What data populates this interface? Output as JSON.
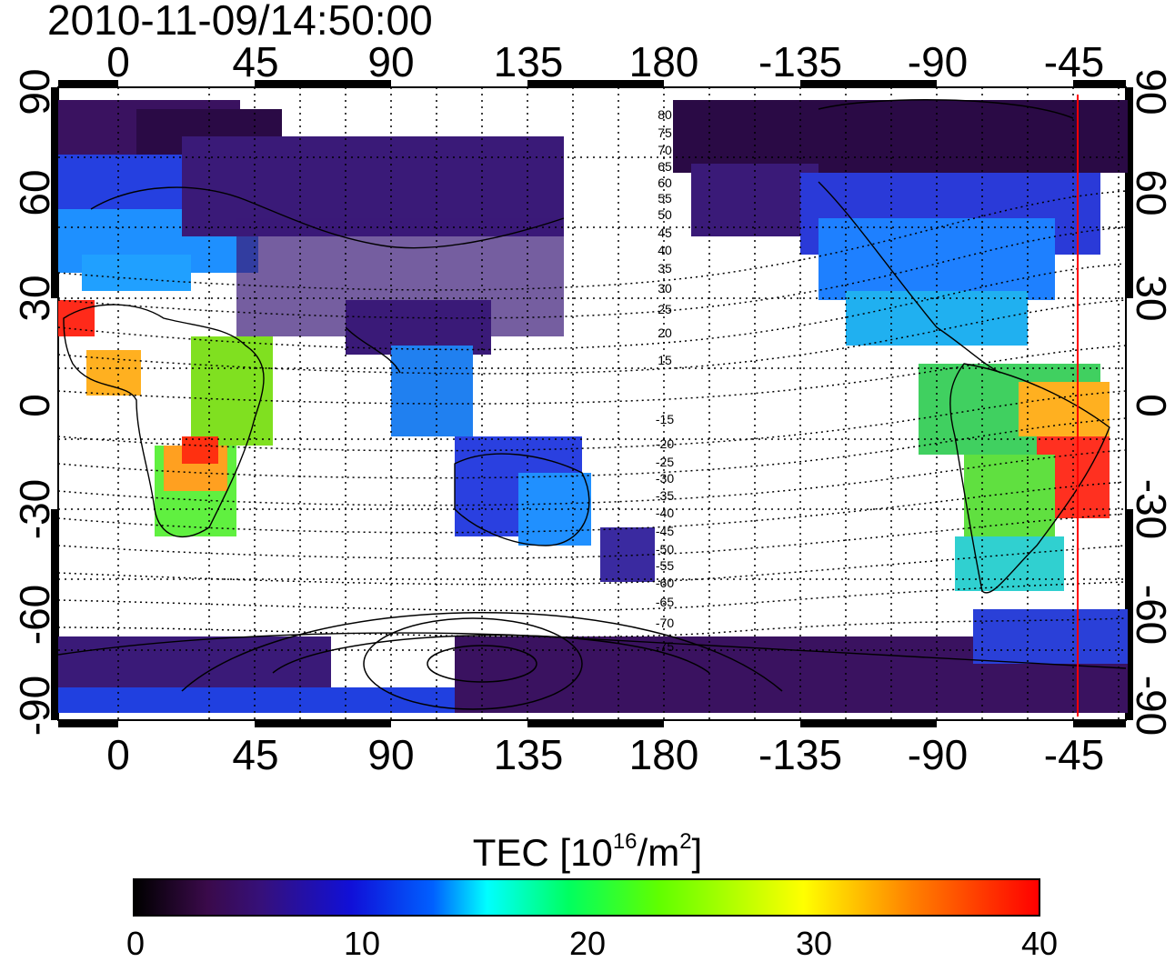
{
  "title": "2010-11-09/14:50:00",
  "map": {
    "top_lon_labels": [
      "0",
      "45",
      "90",
      "135",
      "180",
      "-135",
      "-90",
      "-45"
    ],
    "bottom_lon_labels": [
      "0",
      "45",
      "90",
      "135",
      "180",
      "-135",
      "-90",
      "-45"
    ],
    "left_lat_labels": [
      "90",
      "60",
      "30",
      "0",
      "-30",
      "-60",
      "-90"
    ],
    "right_lat_labels": [
      "90",
      "60",
      "30",
      "0",
      "-30",
      "-60",
      "-90"
    ],
    "contour_labels": [
      "80",
      "75",
      "70",
      "65",
      "60",
      "55",
      "50",
      "45",
      "40",
      "35",
      "30",
      "25",
      "20",
      "15",
      "-15",
      "-20",
      "-25",
      "-30",
      "-35",
      "-40",
      "-45",
      "-50",
      "-55",
      "-60",
      "-65",
      "-70",
      "-75"
    ],
    "marker_color": "#ff0000"
  },
  "colorbar": {
    "title_prefix": "TEC  [10",
    "title_exp": "16",
    "title_mid": "/m",
    "title_exp2": "2",
    "title_suffix": "]",
    "ticks": [
      "0",
      "10",
      "20",
      "30",
      "40"
    ],
    "colors": [
      "#000000",
      "#36107a",
      "#1010d8",
      "#00ffff",
      "#00ff60",
      "#ffff00",
      "#ff0000"
    ]
  }
}
